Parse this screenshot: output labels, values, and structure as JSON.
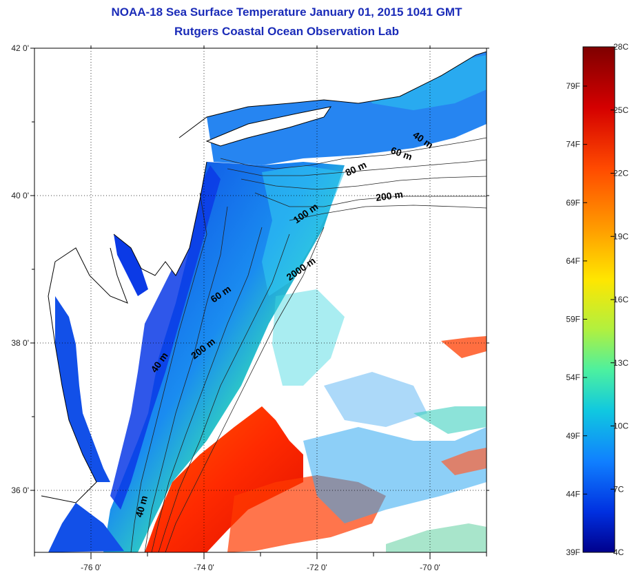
{
  "title": {
    "line1": "NOAA-18 Sea Surface Temperature January 01, 2015 1041 GMT",
    "line2": "Rutgers Coastal Ocean Observation Lab"
  },
  "map": {
    "lon_ticks": [
      {
        "value": -76,
        "label": "-76 0'"
      },
      {
        "value": -74,
        "label": "-74 0'"
      },
      {
        "value": -72,
        "label": "-72 0'"
      },
      {
        "value": -70,
        "label": "-70 0'"
      }
    ],
    "lat_ticks": [
      {
        "value": 42,
        "label": "42 0'"
      },
      {
        "value": 40,
        "label": "40 0'"
      },
      {
        "value": 38,
        "label": "38 0'"
      },
      {
        "value": 36,
        "label": "36 0'"
      }
    ],
    "contour_labels": [
      "40 m",
      "60 m",
      "80 m",
      "200 m",
      "100 m",
      "2000 m",
      "60 m",
      "200 m",
      "40 m",
      "40 m"
    ]
  },
  "colorbar": {
    "celsius": [
      "28C",
      "25C",
      "22C",
      "19C",
      "16C",
      "13C",
      "10C",
      "7C",
      "4C"
    ],
    "fahrenheit": [
      "79F",
      "74F",
      "69F",
      "64F",
      "59F",
      "54F",
      "49F",
      "44F",
      "39F"
    ],
    "colors": [
      "#7f0000",
      "#d40000",
      "#ff4a00",
      "#ff9c00",
      "#ffe600",
      "#b0f040",
      "#4cf0a0",
      "#10c8e0",
      "#1080ff",
      "#0030e0",
      "#00008c"
    ]
  }
}
